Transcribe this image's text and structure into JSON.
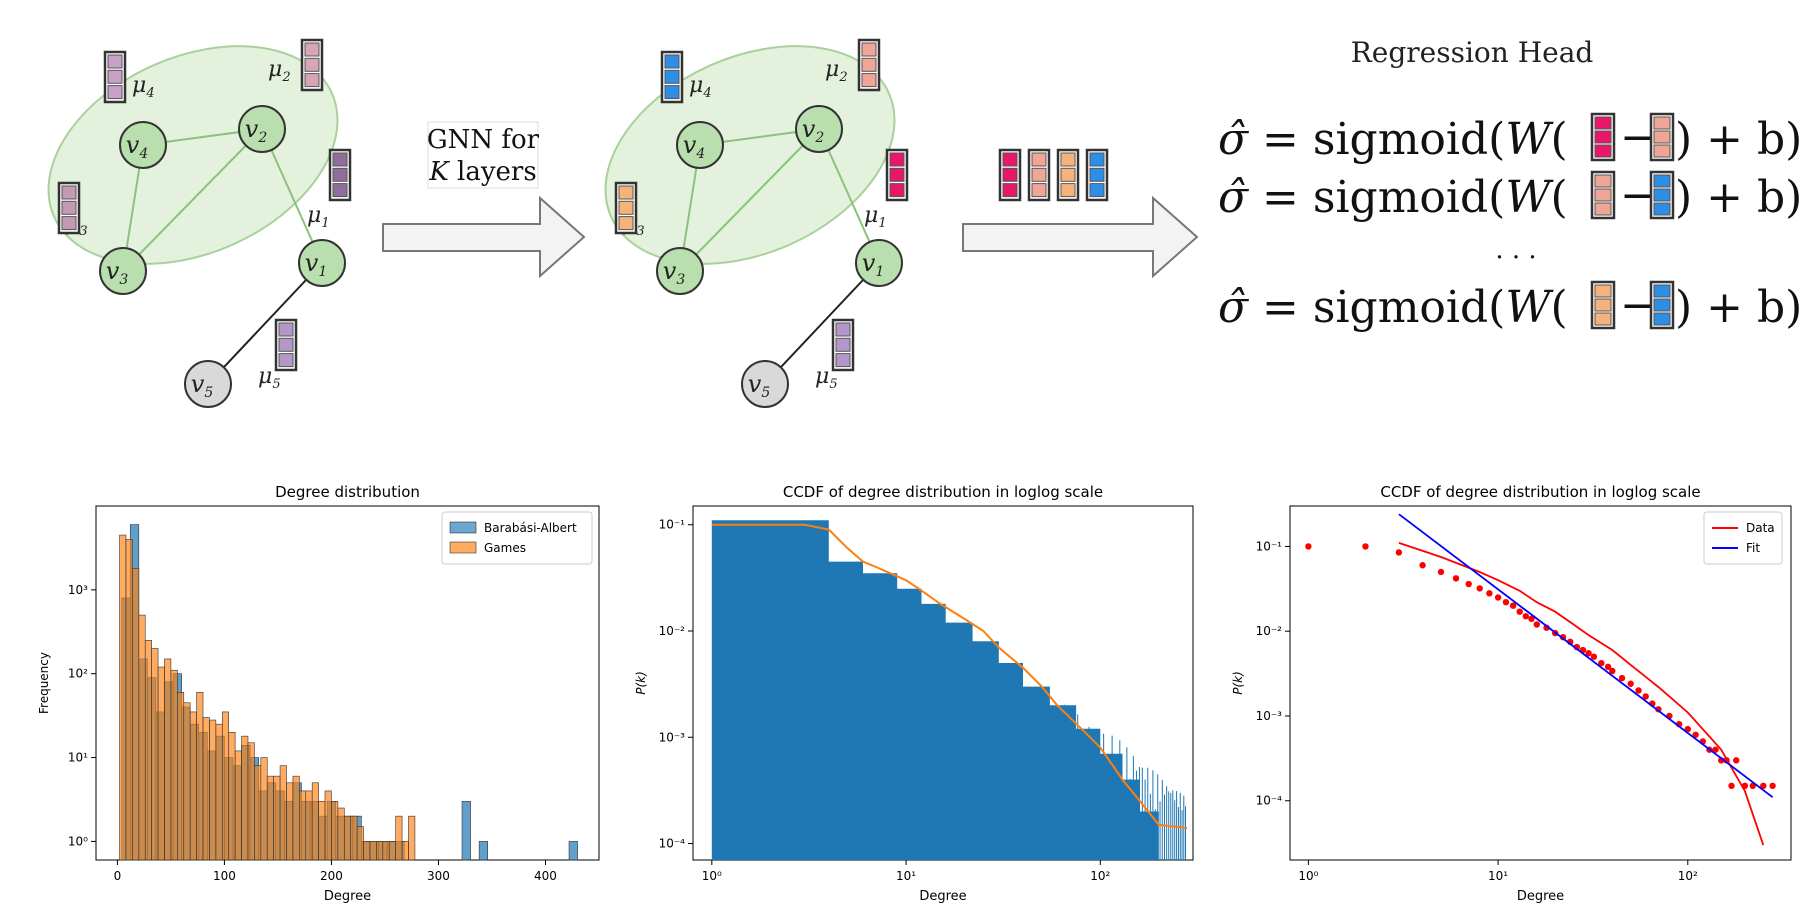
{
  "diagram": {
    "graph_before": {
      "nodes": [
        {
          "label": "v",
          "sub": "4",
          "mu": "μ",
          "mu_sub": "4"
        },
        {
          "label": "v",
          "sub": "2",
          "mu": "μ",
          "mu_sub": "2"
        },
        {
          "label": "v",
          "sub": "3",
          "mu": "μ",
          "mu_sub": "3"
        },
        {
          "label": "v",
          "sub": "1",
          "mu": "μ",
          "mu_sub": "1"
        },
        {
          "label": "v",
          "sub": "5",
          "mu": "μ",
          "mu_sub": "5"
        }
      ],
      "embedding_colors": [
        "#c8a0c8",
        "#d7a6b4",
        "#c39ab4",
        "#8f6e9c",
        "#b497c8"
      ]
    },
    "gnn_label_line1": "GNN for",
    "gnn_label_line2_var": "K",
    "gnn_label_line2_rest": " layers",
    "graph_after": {
      "embedding_colors": [
        "#2d8ee6",
        "#f0a696",
        "#f5b27a",
        "#e8176a",
        "#b497c8"
      ]
    },
    "output_embeddings": [
      "#e8176a",
      "#f0a696",
      "#f5b27a",
      "#2d8ee6"
    ],
    "regression_head": {
      "title": "Regression Head",
      "lhs": "σ̂ = ",
      "fn": "sigmoid(",
      "w": "W",
      "tail": ") + b)",
      "ellipsis": "· · ·",
      "rows": [
        {
          "a": "#e8176a",
          "b": "#f0a696"
        },
        {
          "a": "#f0a696",
          "b": "#2d8ee6"
        },
        {
          "a": "#f5b27a",
          "b": "#2d8ee6"
        }
      ]
    }
  },
  "chart_data": [
    {
      "type": "bar",
      "title": "Degree distribution",
      "xlabel": "Degree",
      "ylabel": "Frequency",
      "log_y": true,
      "xlim": [
        -20,
        450
      ],
      "ylim": [
        0.6,
        10000
      ],
      "x_ticks": [
        "0",
        "100",
        "200",
        "300",
        "400"
      ],
      "y_ticks": [
        "10⁰",
        "10¹",
        "10²",
        "10³"
      ],
      "legend": "top-right",
      "series": [
        {
          "name": "Barabási-Albert",
          "color": "#1f77b4",
          "bins": [
            [
              4,
              12,
              800
            ],
            [
              12,
              20,
              6000
            ],
            [
              20,
              28,
              150
            ],
            [
              28,
              36,
              90
            ],
            [
              36,
              44,
              35
            ],
            [
              44,
              52,
              80
            ],
            [
              52,
              60,
              100
            ],
            [
              60,
              68,
              40
            ],
            [
              68,
              76,
              25
            ],
            [
              76,
              84,
              20
            ],
            [
              84,
              92,
              12
            ],
            [
              92,
              100,
              18
            ],
            [
              100,
              108,
              10
            ],
            [
              108,
              116,
              8
            ],
            [
              116,
              124,
              14
            ],
            [
              124,
              132,
              10
            ],
            [
              132,
              140,
              4
            ],
            [
              140,
              148,
              5
            ],
            [
              148,
              156,
              4
            ],
            [
              156,
              164,
              3
            ],
            [
              164,
              172,
              5
            ],
            [
              172,
              180,
              3
            ],
            [
              180,
              188,
              3
            ],
            [
              188,
              196,
              2
            ],
            [
              196,
              204,
              3
            ],
            [
              204,
              212,
              2
            ],
            [
              212,
              220,
              2
            ],
            [
              220,
              228,
              2
            ],
            [
              228,
              236,
              1
            ],
            [
              236,
              244,
              1
            ],
            [
              244,
              252,
              1
            ],
            [
              252,
              260,
              1
            ],
            [
              260,
              268,
              1
            ],
            [
              322,
              330,
              3
            ],
            [
              338,
              346,
              1
            ],
            [
              422,
              430,
              1
            ]
          ]
        },
        {
          "name": "Games",
          "color": "#ff7f0e",
          "bins": [
            [
              2,
              8,
              4500
            ],
            [
              8,
              14,
              4000
            ],
            [
              14,
              20,
              1800
            ],
            [
              20,
              26,
              500
            ],
            [
              26,
              32,
              250
            ],
            [
              32,
              38,
              200
            ],
            [
              38,
              44,
              120
            ],
            [
              44,
              50,
              150
            ],
            [
              50,
              56,
              110
            ],
            [
              56,
              62,
              60
            ],
            [
              62,
              68,
              45
            ],
            [
              68,
              74,
              35
            ],
            [
              74,
              80,
              60
            ],
            [
              80,
              86,
              30
            ],
            [
              86,
              92,
              28
            ],
            [
              92,
              98,
              25
            ],
            [
              98,
              104,
              35
            ],
            [
              104,
              110,
              20
            ],
            [
              110,
              116,
              12
            ],
            [
              116,
              122,
              18
            ],
            [
              122,
              128,
              15
            ],
            [
              128,
              134,
              8
            ],
            [
              134,
              140,
              10
            ],
            [
              140,
              146,
              6
            ],
            [
              146,
              152,
              6
            ],
            [
              152,
              158,
              8
            ],
            [
              158,
              164,
              5
            ],
            [
              164,
              170,
              6
            ],
            [
              170,
              176,
              4
            ],
            [
              176,
              182,
              4
            ],
            [
              182,
              188,
              5
            ],
            [
              188,
              194,
              3
            ],
            [
              194,
              200,
              4
            ],
            [
              200,
              206,
              3
            ],
            [
              206,
              212,
              2.5
            ],
            [
              212,
              218,
              2
            ],
            [
              218,
              224,
              2
            ],
            [
              224,
              230,
              1.5
            ],
            [
              230,
              236,
              1
            ],
            [
              236,
              242,
              1
            ],
            [
              242,
              248,
              1
            ],
            [
              248,
              254,
              1
            ],
            [
              254,
              260,
              1
            ],
            [
              260,
              266,
              2
            ],
            [
              266,
              272,
              1
            ],
            [
              272,
              278,
              2
            ]
          ]
        }
      ]
    },
    {
      "type": "area",
      "title": "CCDF of degree distribution in loglog scale",
      "xlabel": "Degree",
      "ylabel": "P(k)",
      "log_x": true,
      "log_y": true,
      "xlim": [
        0.8,
        300
      ],
      "ylim": [
        7e-05,
        0.15
      ],
      "x_ticks": [
        "10⁰",
        "10¹",
        "10²"
      ],
      "y_ticks": [
        "10⁻⁴",
        "10⁻³",
        "10⁻²",
        "10⁻¹"
      ],
      "series": [
        {
          "name": "",
          "color": "#1f77b4",
          "x": [
            1,
            4,
            4,
            6,
            6,
            9,
            9,
            12,
            12,
            16,
            16,
            22,
            22,
            30,
            30,
            40,
            40,
            55,
            55,
            75,
            75,
            100,
            100,
            130,
            130,
            160,
            160,
            200,
            200,
            280
          ],
          "y": [
            0.11,
            0.11,
            0.045,
            0.045,
            0.035,
            0.035,
            0.025,
            0.025,
            0.018,
            0.018,
            0.012,
            0.012,
            0.008,
            0.008,
            0.005,
            0.005,
            0.003,
            0.003,
            0.002,
            0.002,
            0.0012,
            0.0012,
            0.0007,
            0.0007,
            0.0004,
            0.0004,
            0.0002,
            0.0002,
            7e-05,
            7e-05
          ]
        },
        {
          "name": "",
          "color": "#ff7f0e",
          "x": [
            1,
            2,
            3,
            4,
            5,
            6,
            7,
            8,
            10,
            12,
            15,
            20,
            25,
            30,
            40,
            50,
            60,
            80,
            100,
            130,
            160,
            200,
            280
          ],
          "y": [
            0.1,
            0.1,
            0.1,
            0.09,
            0.06,
            0.045,
            0.04,
            0.036,
            0.03,
            0.024,
            0.018,
            0.013,
            0.01,
            0.007,
            0.0045,
            0.003,
            0.002,
            0.0012,
            0.0008,
            0.0004,
            0.00025,
            0.00015,
            0.00014
          ]
        }
      ]
    },
    {
      "type": "scatter",
      "title": "CCDF of degree distribution in loglog scale",
      "xlabel": "Degree",
      "ylabel": "P(k)",
      "log_x": true,
      "log_y": true,
      "xlim": [
        0.8,
        350
      ],
      "ylim": [
        2e-05,
        0.3
      ],
      "x_ticks": [
        "10⁰",
        "10¹",
        "10²"
      ],
      "y_ticks": [
        "10⁻⁴",
        "10⁻³",
        "10⁻²",
        "10⁻¹"
      ],
      "legend": "top-right",
      "points": {
        "x": [
          1,
          2,
          3,
          4,
          5,
          6,
          7,
          8,
          9,
          10,
          11,
          12,
          13,
          14,
          15,
          16,
          18,
          20,
          22,
          24,
          26,
          28,
          30,
          32,
          35,
          38,
          40,
          45,
          50,
          55,
          60,
          65,
          70,
          80,
          90,
          100,
          110,
          120,
          130,
          140,
          150,
          160,
          170,
          180,
          200,
          220,
          250,
          280
        ],
        "y": [
          0.1,
          0.1,
          0.085,
          0.06,
          0.05,
          0.042,
          0.036,
          0.032,
          0.028,
          0.025,
          0.022,
          0.02,
          0.017,
          0.015,
          0.014,
          0.012,
          0.011,
          0.0095,
          0.0085,
          0.0075,
          0.0065,
          0.006,
          0.0055,
          0.005,
          0.0042,
          0.0038,
          0.0034,
          0.0028,
          0.0024,
          0.002,
          0.0017,
          0.0014,
          0.0012,
          0.001,
          0.0008,
          0.0007,
          0.0006,
          0.0005,
          0.0004,
          0.0004,
          0.0003,
          0.0003,
          0.00015,
          0.0003,
          0.00015,
          0.00015,
          0.00015,
          0.00015
        ]
      },
      "series": [
        {
          "name": "Data",
          "color": "#ff0000",
          "x": [
            3,
            5,
            8,
            10,
            13,
            16,
            20,
            25,
            30,
            40,
            50,
            70,
            100,
            150,
            200,
            250
          ],
          "y": [
            0.11,
            0.075,
            0.05,
            0.04,
            0.03,
            0.022,
            0.017,
            0.012,
            0.009,
            0.006,
            0.004,
            0.0022,
            0.0011,
            0.0004,
            0.00013,
            3e-05
          ]
        },
        {
          "name": "Fit",
          "color": "#0000ff",
          "x": [
            3,
            280
          ],
          "y": [
            0.24,
            0.00011
          ]
        }
      ]
    }
  ]
}
